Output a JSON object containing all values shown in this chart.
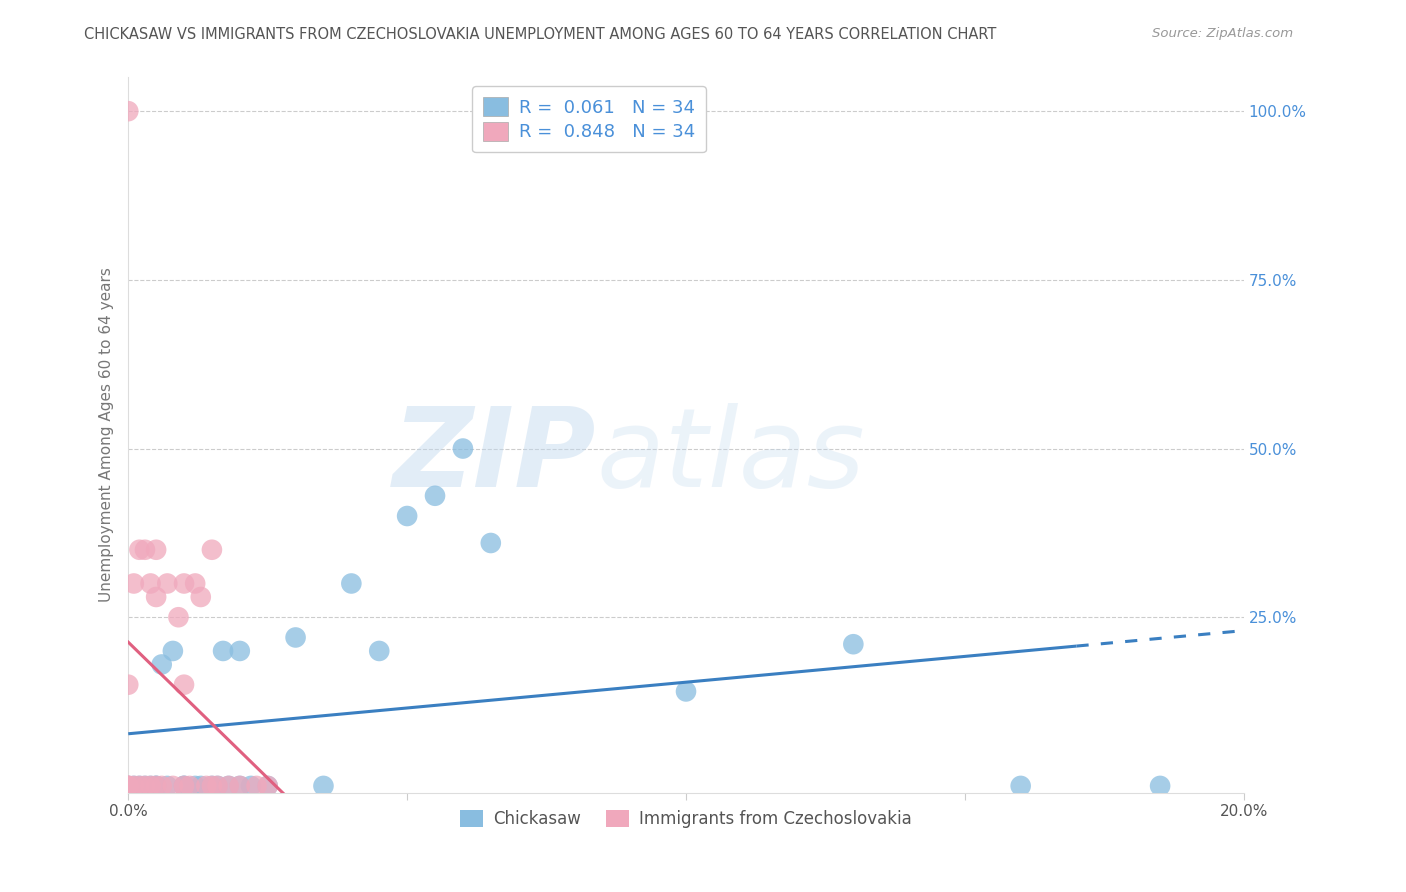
{
  "title": "CHICKASAW VS IMMIGRANTS FROM CZECHOSLOVAKIA UNEMPLOYMENT AMONG AGES 60 TO 64 YEARS CORRELATION CHART",
  "source": "Source: ZipAtlas.com",
  "ylabel": "Unemployment Among Ages 60 to 64 years",
  "xlim": [
    0.0,
    0.2
  ],
  "ylim": [
    -0.01,
    1.05
  ],
  "chickasaw_color": "#89bde0",
  "czech_color": "#f0a8bc",
  "chickasaw_trend_color": "#3a7fc1",
  "czech_trend_color": "#e06080",
  "chickasaw_R": 0.061,
  "chickasaw_N": 34,
  "czech_R": 0.848,
  "czech_N": 34,
  "legend_label_1": "Chickasaw",
  "legend_label_2": "Immigrants from Czechoslovakia",
  "watermark": "ZIPatlas",
  "background_color": "#ffffff",
  "grid_color": "#cccccc",
  "title_color": "#555555",
  "right_tick_color": "#4a90d9",
  "chickasaw_x": [
    0.0,
    0.001,
    0.002,
    0.003,
    0.004,
    0.005,
    0.005,
    0.006,
    0.007,
    0.008,
    0.01,
    0.01,
    0.012,
    0.013,
    0.015,
    0.016,
    0.017,
    0.018,
    0.02,
    0.02,
    0.022,
    0.025,
    0.03,
    0.035,
    0.04,
    0.045,
    0.05,
    0.055,
    0.06,
    0.065,
    0.1,
    0.13,
    0.16,
    0.185
  ],
  "chickasaw_y": [
    0.0,
    0.0,
    0.0,
    0.0,
    0.0,
    0.0,
    0.0,
    0.18,
    0.0,
    0.2,
    0.0,
    0.0,
    0.0,
    0.0,
    0.0,
    0.0,
    0.2,
    0.0,
    0.0,
    0.2,
    0.0,
    0.0,
    0.22,
    0.0,
    0.3,
    0.2,
    0.4,
    0.43,
    0.5,
    0.36,
    0.14,
    0.21,
    0.0,
    0.0
  ],
  "czech_x": [
    0.0,
    0.0,
    0.0,
    0.0,
    0.0,
    0.001,
    0.001,
    0.002,
    0.002,
    0.003,
    0.003,
    0.004,
    0.004,
    0.005,
    0.005,
    0.005,
    0.006,
    0.007,
    0.008,
    0.009,
    0.01,
    0.01,
    0.01,
    0.011,
    0.012,
    0.013,
    0.014,
    0.015,
    0.015,
    0.016,
    0.018,
    0.02,
    0.023,
    0.025
  ],
  "czech_y": [
    0.0,
    0.0,
    0.0,
    0.15,
    1.0,
    0.0,
    0.3,
    0.0,
    0.35,
    0.0,
    0.35,
    0.0,
    0.3,
    0.0,
    0.28,
    0.35,
    0.0,
    0.3,
    0.0,
    0.25,
    0.0,
    0.15,
    0.3,
    0.0,
    0.3,
    0.28,
    0.0,
    0.0,
    0.35,
    0.0,
    0.0,
    0.0,
    0.0,
    0.0
  ]
}
